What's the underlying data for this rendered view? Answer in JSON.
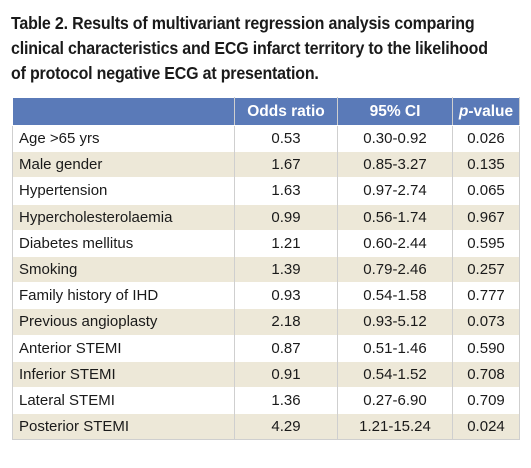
{
  "caption": {
    "line1": "Table 2. Results of multivariant regression analysis comparing",
    "line2": "clinical characteristics and ECG infarct territory to the likelihood",
    "line3": "of protocol negative ECG at presentation."
  },
  "table": {
    "headers": {
      "variable": "",
      "odds_ratio": "Odds ratio",
      "ci": "95% CI",
      "pvalue_p": "p",
      "pvalue_rest": "-value"
    },
    "header_color": "#5a7ab8",
    "stripe_color": "#ede8d8",
    "rows": [
      {
        "label": "Age >65 yrs",
        "odds_ratio": "0.53",
        "ci": "0.30-0.92",
        "p": "0.026"
      },
      {
        "label": "Male gender",
        "odds_ratio": "1.67",
        "ci": "0.85-3.27",
        "p": "0.135"
      },
      {
        "label": "Hypertension",
        "odds_ratio": "1.63",
        "ci": "0.97-2.74",
        "p": "0.065"
      },
      {
        "label": "Hypercholesterolaemia",
        "odds_ratio": "0.99",
        "ci": "0.56-1.74",
        "p": "0.967"
      },
      {
        "label": "Diabetes mellitus",
        "odds_ratio": "1.21",
        "ci": "0.60-2.44",
        "p": "0.595"
      },
      {
        "label": "Smoking",
        "odds_ratio": "1.39",
        "ci": "0.79-2.46",
        "p": "0.257"
      },
      {
        "label": "Family history of IHD",
        "odds_ratio": "0.93",
        "ci": "0.54-1.58",
        "p": "0.777"
      },
      {
        "label": "Previous angioplasty",
        "odds_ratio": "2.18",
        "ci": "0.93-5.12",
        "p": "0.073"
      },
      {
        "label": "Anterior STEMI",
        "odds_ratio": "0.87",
        "ci": "0.51-1.46",
        "p": "0.590"
      },
      {
        "label": "Inferior STEMI",
        "odds_ratio": "0.91",
        "ci": "0.54-1.52",
        "p": "0.708"
      },
      {
        "label": "Lateral STEMI",
        "odds_ratio": "1.36",
        "ci": "0.27-6.90",
        "p": "0.709"
      },
      {
        "label": "Posterior STEMI",
        "odds_ratio": "4.29",
        "ci": "1.21-15.24",
        "p": "0.024"
      }
    ]
  }
}
